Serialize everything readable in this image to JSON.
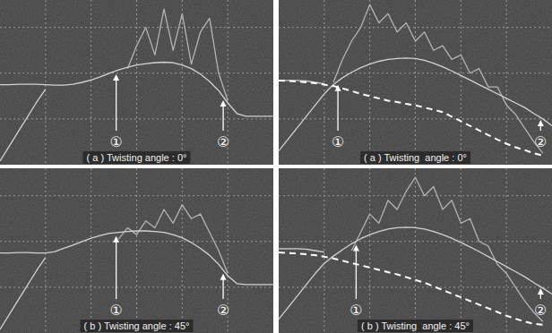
{
  "chart_data": [
    {
      "type": "line",
      "title": "( a ) Twisting angle : 0°",
      "x": [
        0,
        0.2,
        0.4,
        0.6,
        0.8,
        1,
        1.2,
        1.4,
        1.6,
        1.8,
        2,
        2.2,
        2.4,
        2.6,
        2.8,
        3,
        3.2,
        3.4,
        3.6,
        3.8,
        4,
        4.2,
        4.4,
        4.6,
        4.8,
        5,
        5.2,
        5.4,
        5.6,
        5.8,
        6
      ],
      "xlim": [
        0,
        6
      ],
      "ylim": [
        0,
        3.6
      ],
      "xticks": [
        1,
        2,
        3,
        4,
        5
      ],
      "yticks": [
        1,
        2,
        3
      ],
      "grid": true,
      "tick_labels": false,
      "series": [
        {
          "color": "#d2d2d2",
          "line_style": "solid",
          "values": [
            1.75,
            1.75,
            1.76,
            1.76,
            1.76,
            1.75,
            1.74,
            1.74,
            1.76,
            1.8,
            1.85,
            1.92,
            2.0,
            2.07,
            2.13,
            2.18,
            2.21,
            2.23,
            2.24,
            2.23,
            2.18,
            2.1,
            1.98,
            1.82,
            1.62,
            1.35,
            1.12,
            1.06,
            1.06,
            1.06,
            1.06
          ]
        },
        {
          "color": "#d2d2d2",
          "line_style": "solid",
          "values": [
            0.08,
            0.4,
            0.72,
            1.04,
            1.36,
            1.65,
            null,
            null,
            null,
            null,
            null,
            null,
            null,
            null,
            null,
            null,
            null,
            null,
            null,
            null,
            null,
            null,
            null,
            null,
            null,
            null,
            null,
            null,
            null,
            null,
            null
          ]
        },
        {
          "color": "#b4b4b4",
          "line_style": "solid",
          "values": [
            null,
            null,
            null,
            null,
            null,
            null,
            null,
            null,
            null,
            null,
            null,
            null,
            null,
            null,
            2.1,
            2.6,
            3.0,
            2.4,
            3.4,
            2.5,
            3.3,
            2.2,
            2.9,
            3.2,
            2.0,
            1.4,
            null,
            null,
            null,
            null,
            null
          ]
        }
      ],
      "annotations": [
        {
          "text": "①",
          "x": 2.55
        },
        {
          "text": "②",
          "x": 4.9
        }
      ]
    },
    {
      "type": "line",
      "title": "( b ) Twisting angle : 45°",
      "x": [
        0,
        0.2,
        0.4,
        0.6,
        0.8,
        1,
        1.2,
        1.4,
        1.6,
        1.8,
        2,
        2.2,
        2.4,
        2.6,
        2.8,
        3,
        3.2,
        3.4,
        3.6,
        3.8,
        4,
        4.2,
        4.4,
        4.6,
        4.8,
        5,
        5.2,
        5.4,
        5.6,
        5.8,
        6
      ],
      "xlim": [
        0,
        6
      ],
      "ylim": [
        0,
        3.6
      ],
      "xticks": [
        1,
        2,
        3,
        4,
        5
      ],
      "yticks": [
        1,
        2,
        3
      ],
      "grid": true,
      "tick_labels": false,
      "series": [
        {
          "color": "#d2d2d2",
          "line_style": "solid",
          "values": [
            1.75,
            1.75,
            1.76,
            1.76,
            1.75,
            1.75,
            1.78,
            1.85,
            1.92,
            2.0,
            2.07,
            2.13,
            2.18,
            2.2,
            2.22,
            2.23,
            2.23,
            2.22,
            2.2,
            2.15,
            2.08,
            1.98,
            1.85,
            1.7,
            1.5,
            1.25,
            1.08,
            1.06,
            1.06,
            1.06,
            1.06
          ]
        },
        {
          "color": "#d2d2d2",
          "line_style": "solid",
          "values": [
            0.08,
            0.4,
            0.72,
            1.04,
            1.36,
            1.65,
            null,
            null,
            null,
            null,
            null,
            null,
            null,
            null,
            null,
            null,
            null,
            null,
            null,
            null,
            null,
            null,
            null,
            null,
            null,
            null,
            null,
            null,
            null,
            null,
            null
          ]
        },
        {
          "color": "#b4b4b4",
          "line_style": "solid",
          "values": [
            null,
            null,
            null,
            null,
            null,
            null,
            null,
            null,
            null,
            null,
            null,
            null,
            null,
            2.05,
            2.3,
            2.15,
            2.45,
            2.3,
            2.7,
            2.4,
            2.8,
            2.5,
            2.6,
            2.2,
            1.8,
            1.3,
            null,
            null,
            null,
            null,
            null
          ]
        }
      ],
      "annotations": [
        {
          "text": "①",
          "x": 2.55
        },
        {
          "text": "②",
          "x": 4.9
        }
      ]
    },
    {
      "type": "line",
      "title": "( a ) Twisting  angle : 0°",
      "x": [
        0,
        0.2,
        0.4,
        0.6,
        0.8,
        1,
        1.2,
        1.4,
        1.6,
        1.8,
        2,
        2.2,
        2.4,
        2.6,
        2.8,
        3,
        3.2,
        3.4,
        3.6,
        3.8,
        4,
        4.2,
        4.4,
        4.6,
        4.8,
        5,
        5.2,
        5.4,
        5.6,
        5.8,
        6
      ],
      "xlim": [
        0,
        6
      ],
      "ylim": [
        0,
        3.6
      ],
      "xticks": [
        1,
        2,
        3,
        4,
        5
      ],
      "yticks": [
        1,
        2,
        3
      ],
      "grid": true,
      "tick_labels": false,
      "series": [
        {
          "color": "#d2d2d2",
          "line_style": "solid",
          "values": [
            0.3,
            0.55,
            0.8,
            1.05,
            1.3,
            1.55,
            1.75,
            1.9,
            2.02,
            2.12,
            2.2,
            2.26,
            2.3,
            2.32,
            2.33,
            2.32,
            2.28,
            2.22,
            2.14,
            2.05,
            1.95,
            1.85,
            1.75,
            1.65,
            1.55,
            1.45,
            1.35,
            1.25,
            1.12,
            1.0,
            0.85
          ]
        },
        {
          "color": "#d2d2d2",
          "line_style": "solid",
          "values": [
            1.84,
            1.84,
            1.84,
            1.83,
            1.8,
            1.77,
            null,
            null,
            null,
            null,
            null,
            null,
            null,
            null,
            null,
            null,
            null,
            null,
            null,
            null,
            null,
            null,
            null,
            null,
            null,
            null,
            null,
            null,
            null,
            null,
            null
          ]
        },
        {
          "color": "#b4b4b4",
          "line_style": "solid",
          "values": [
            null,
            null,
            null,
            null,
            null,
            null,
            1.8,
            2.3,
            2.7,
            3.0,
            3.5,
            3.1,
            3.3,
            2.9,
            3.1,
            2.7,
            2.9,
            2.5,
            2.6,
            2.3,
            2.4,
            2.0,
            2.1,
            1.7,
            1.7,
            1.3,
            1.1,
            0.8,
            0.5,
            0.25,
            null
          ]
        },
        {
          "color": "#ffffff",
          "line_style": "dashed",
          "values": [
            1.84,
            1.83,
            1.82,
            1.8,
            1.78,
            1.75,
            1.72,
            1.67,
            1.61,
            1.55,
            1.5,
            1.45,
            1.4,
            1.37,
            1.33,
            1.3,
            1.25,
            1.2,
            1.15,
            1.05,
            0.95,
            0.85,
            0.75,
            0.65,
            0.55,
            0.46,
            0.38,
            0.32,
            0.25,
            0.2,
            null
          ]
        }
      ],
      "annotations": [
        {
          "text": "①",
          "x": 1.3
        },
        {
          "text": "②",
          "x": 5.75
        }
      ]
    },
    {
      "type": "line",
      "title": "( b ) Twisting  angle : 45°",
      "x": [
        0,
        0.2,
        0.4,
        0.6,
        0.8,
        1,
        1.2,
        1.4,
        1.6,
        1.8,
        2,
        2.2,
        2.4,
        2.6,
        2.8,
        3,
        3.2,
        3.4,
        3.6,
        3.8,
        4,
        4.2,
        4.4,
        4.6,
        4.8,
        5,
        5.2,
        5.4,
        5.6,
        5.8,
        6
      ],
      "xlim": [
        0,
        6
      ],
      "ylim": [
        0,
        3.6
      ],
      "xticks": [
        1,
        2,
        3,
        4,
        5
      ],
      "yticks": [
        1,
        2,
        3
      ],
      "grid": true,
      "tick_labels": false,
      "series": [
        {
          "color": "#d2d2d2",
          "line_style": "solid",
          "values": [
            0.3,
            0.55,
            0.8,
            1.05,
            1.3,
            1.52,
            1.68,
            1.82,
            1.95,
            2.06,
            2.15,
            2.22,
            2.27,
            2.3,
            2.31,
            2.3,
            2.27,
            2.22,
            2.15,
            2.07,
            1.98,
            1.88,
            1.78,
            1.67,
            1.56,
            1.45,
            1.34,
            1.23,
            1.1,
            0.98,
            0.85
          ]
        },
        {
          "color": "#d2d2d2",
          "line_style": "solid",
          "values": [
            1.84,
            1.84,
            1.84,
            1.83,
            1.8,
            1.77,
            null,
            null,
            null,
            null,
            null,
            null,
            null,
            null,
            null,
            null,
            null,
            null,
            null,
            null,
            null,
            null,
            null,
            null,
            null,
            null,
            null,
            null,
            null,
            null,
            null
          ]
        },
        {
          "color": "#b4b4b4",
          "line_style": "solid",
          "values": [
            null,
            null,
            null,
            null,
            null,
            null,
            null,
            null,
            1.8,
            2.2,
            2.6,
            2.4,
            2.9,
            2.7,
            3.1,
            3.4,
            3.0,
            3.2,
            2.7,
            2.9,
            2.4,
            2.5,
            2.0,
            1.9,
            1.5,
            1.3,
            1.0,
            0.7,
            0.45,
            0.25,
            null
          ]
        },
        {
          "color": "#ffffff",
          "line_style": "dashed",
          "values": [
            1.76,
            1.75,
            1.74,
            1.72,
            1.7,
            1.67,
            1.63,
            1.58,
            1.53,
            1.48,
            1.43,
            1.38,
            1.33,
            1.28,
            1.22,
            1.16,
            1.1,
            1.02,
            0.94,
            0.86,
            0.78,
            0.7,
            0.62,
            0.54,
            0.46,
            0.38,
            0.31,
            0.25,
            0.2,
            0.18,
            null
          ]
        }
      ],
      "annotations": [
        {
          "text": "①",
          "x": 1.7
        },
        {
          "text": "②",
          "x": 5.75
        }
      ]
    }
  ]
}
